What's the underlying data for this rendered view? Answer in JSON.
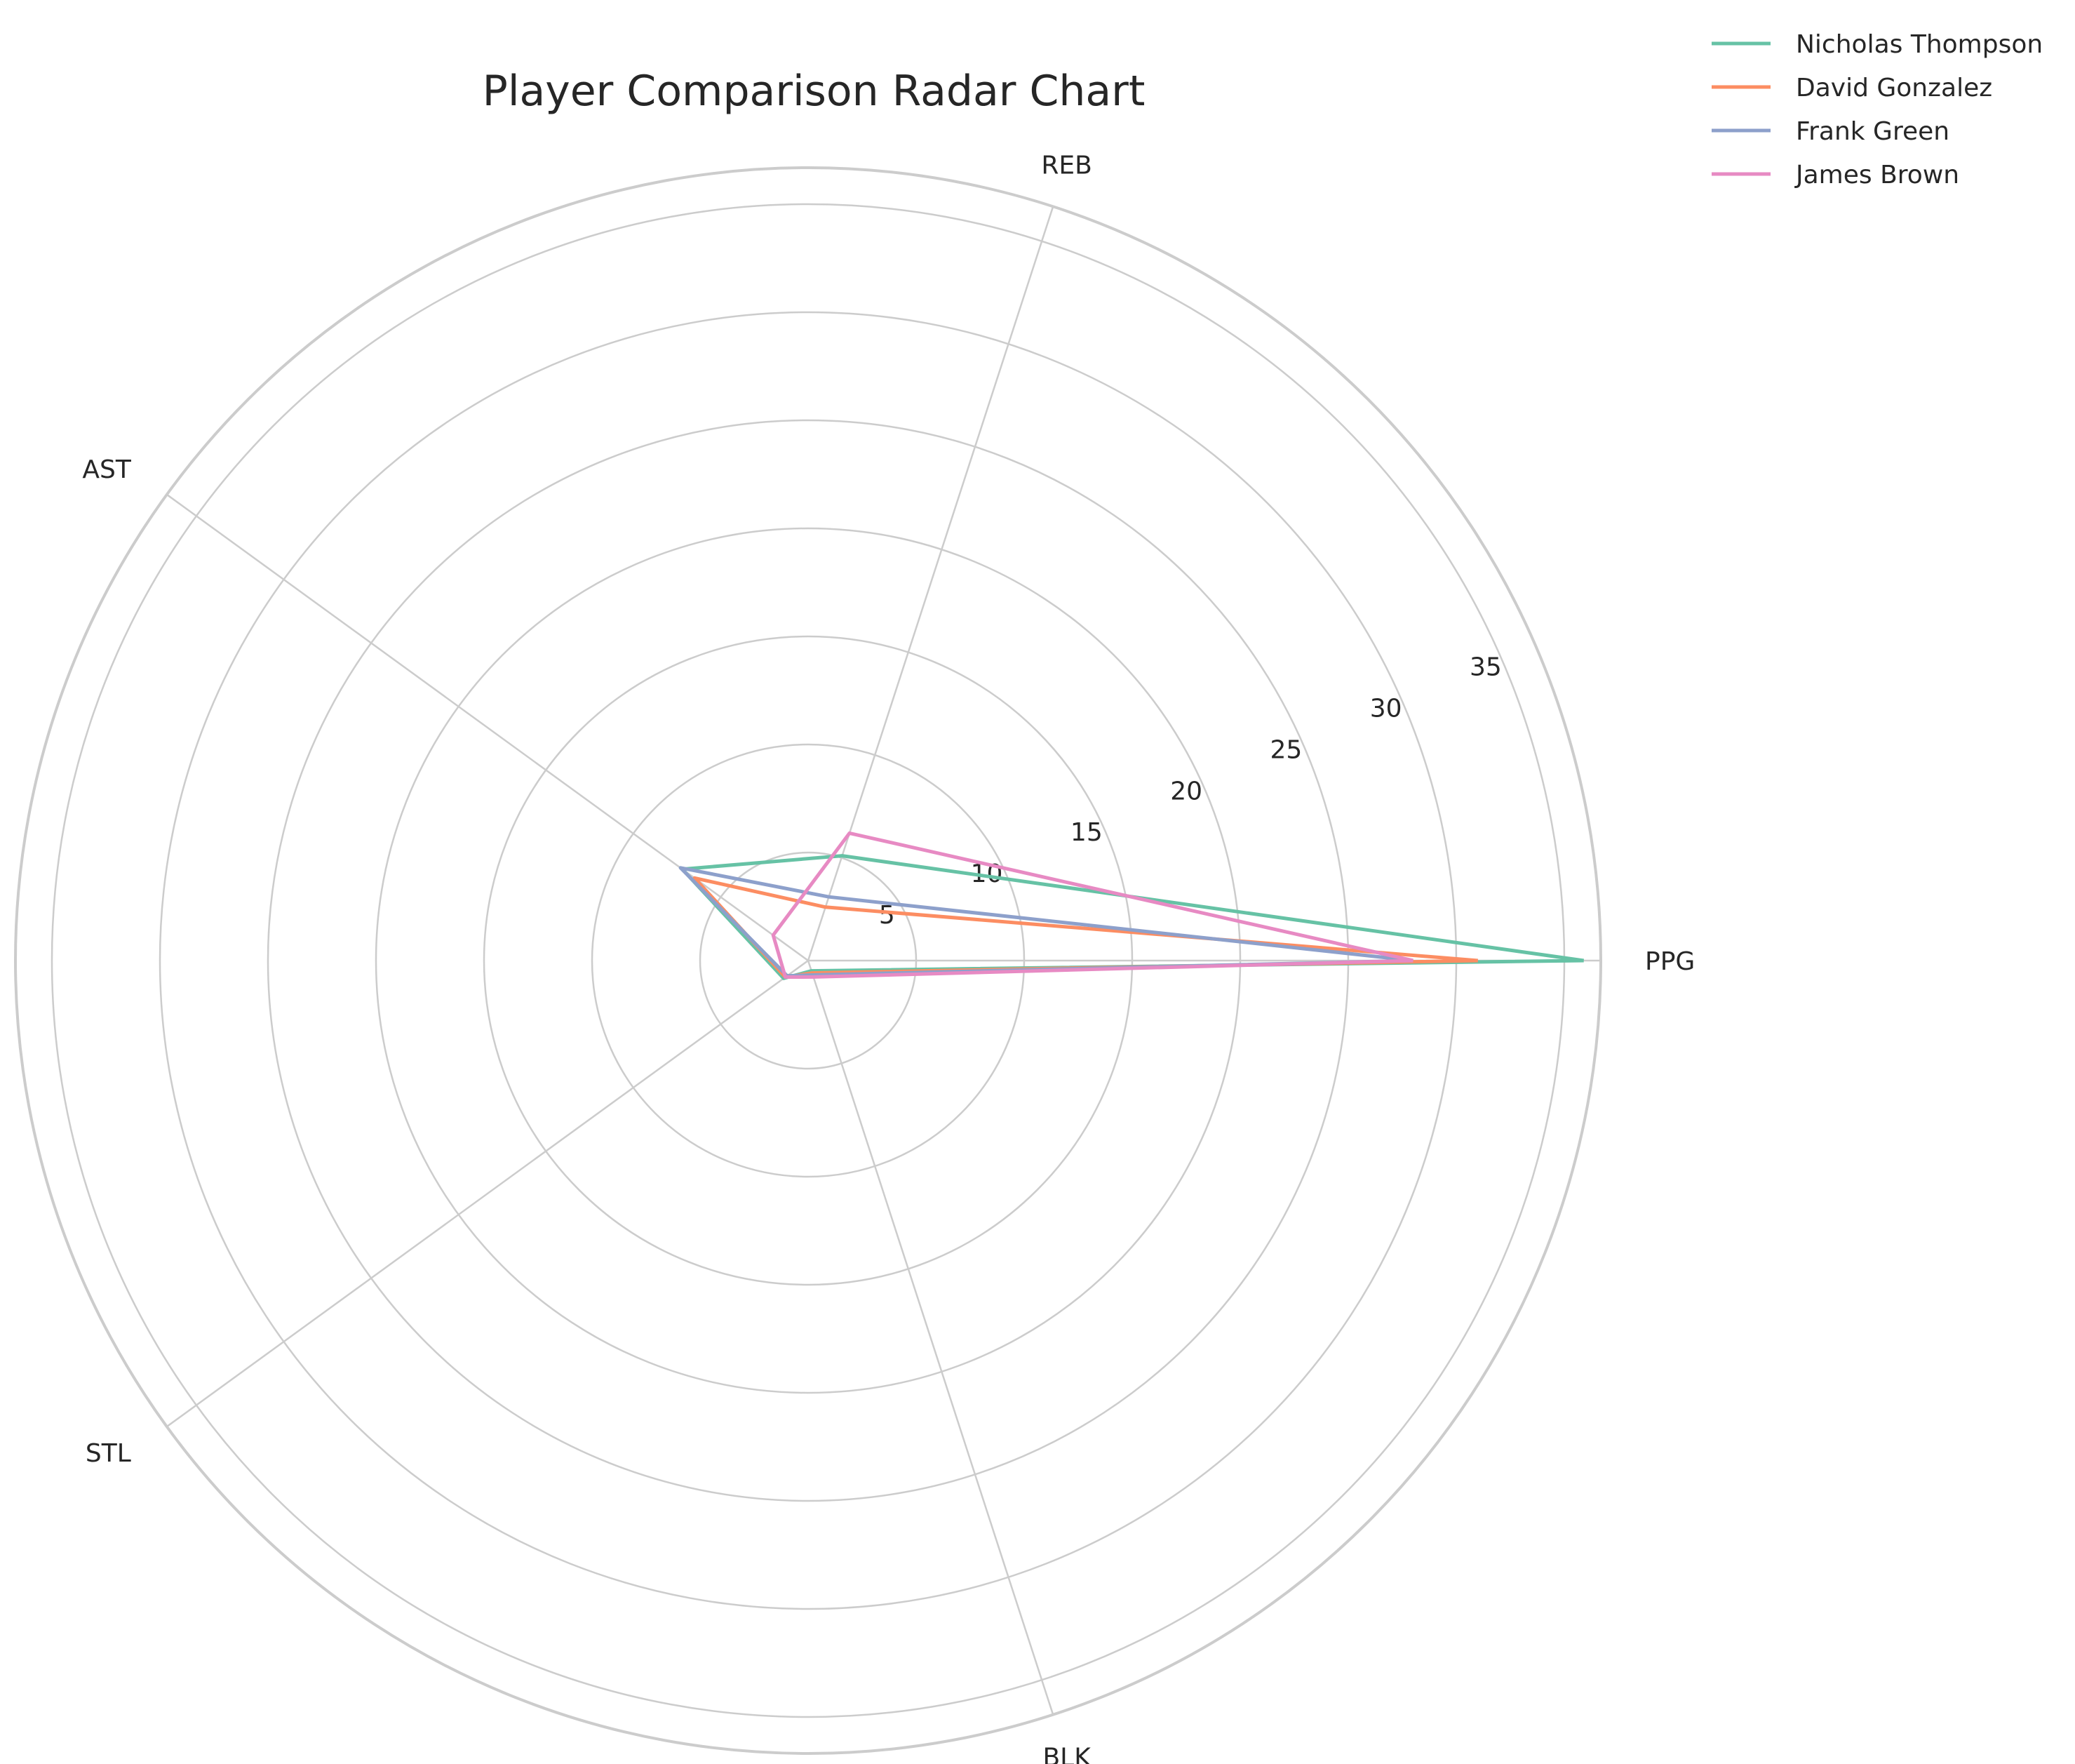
{
  "chart_data": {
    "type": "radar",
    "title": "Player Comparison Radar Chart",
    "axes": [
      "PPG",
      "REB",
      "AST",
      "STL",
      "BLK"
    ],
    "r_ticks": [
      5,
      10,
      15,
      20,
      25,
      30,
      35
    ],
    "r_tick_labels": [
      "5",
      "10",
      "15",
      "20",
      "25",
      "30",
      "35"
    ],
    "rlim": [
      0,
      36
    ],
    "grid": true,
    "legend_position": "top-right, outside plot",
    "series": [
      {
        "name": "Nicholas Thompson",
        "color": "#66c2a5",
        "values": [
          35.9,
          5.1,
          7.2,
          1.4,
          0.5
        ]
      },
      {
        "name": "David Gonzalez",
        "color": "#fc8d62",
        "values": [
          31.0,
          2.6,
          6.5,
          1.3,
          0.6
        ]
      },
      {
        "name": "Frank Green",
        "color": "#8da0cb",
        "values": [
          28.0,
          3.1,
          7.3,
          1.2,
          0.7
        ]
      },
      {
        "name": "James Brown",
        "color": "#e78ac3",
        "values": [
          28.0,
          6.2,
          2.0,
          1.3,
          0.8
        ]
      }
    ]
  }
}
